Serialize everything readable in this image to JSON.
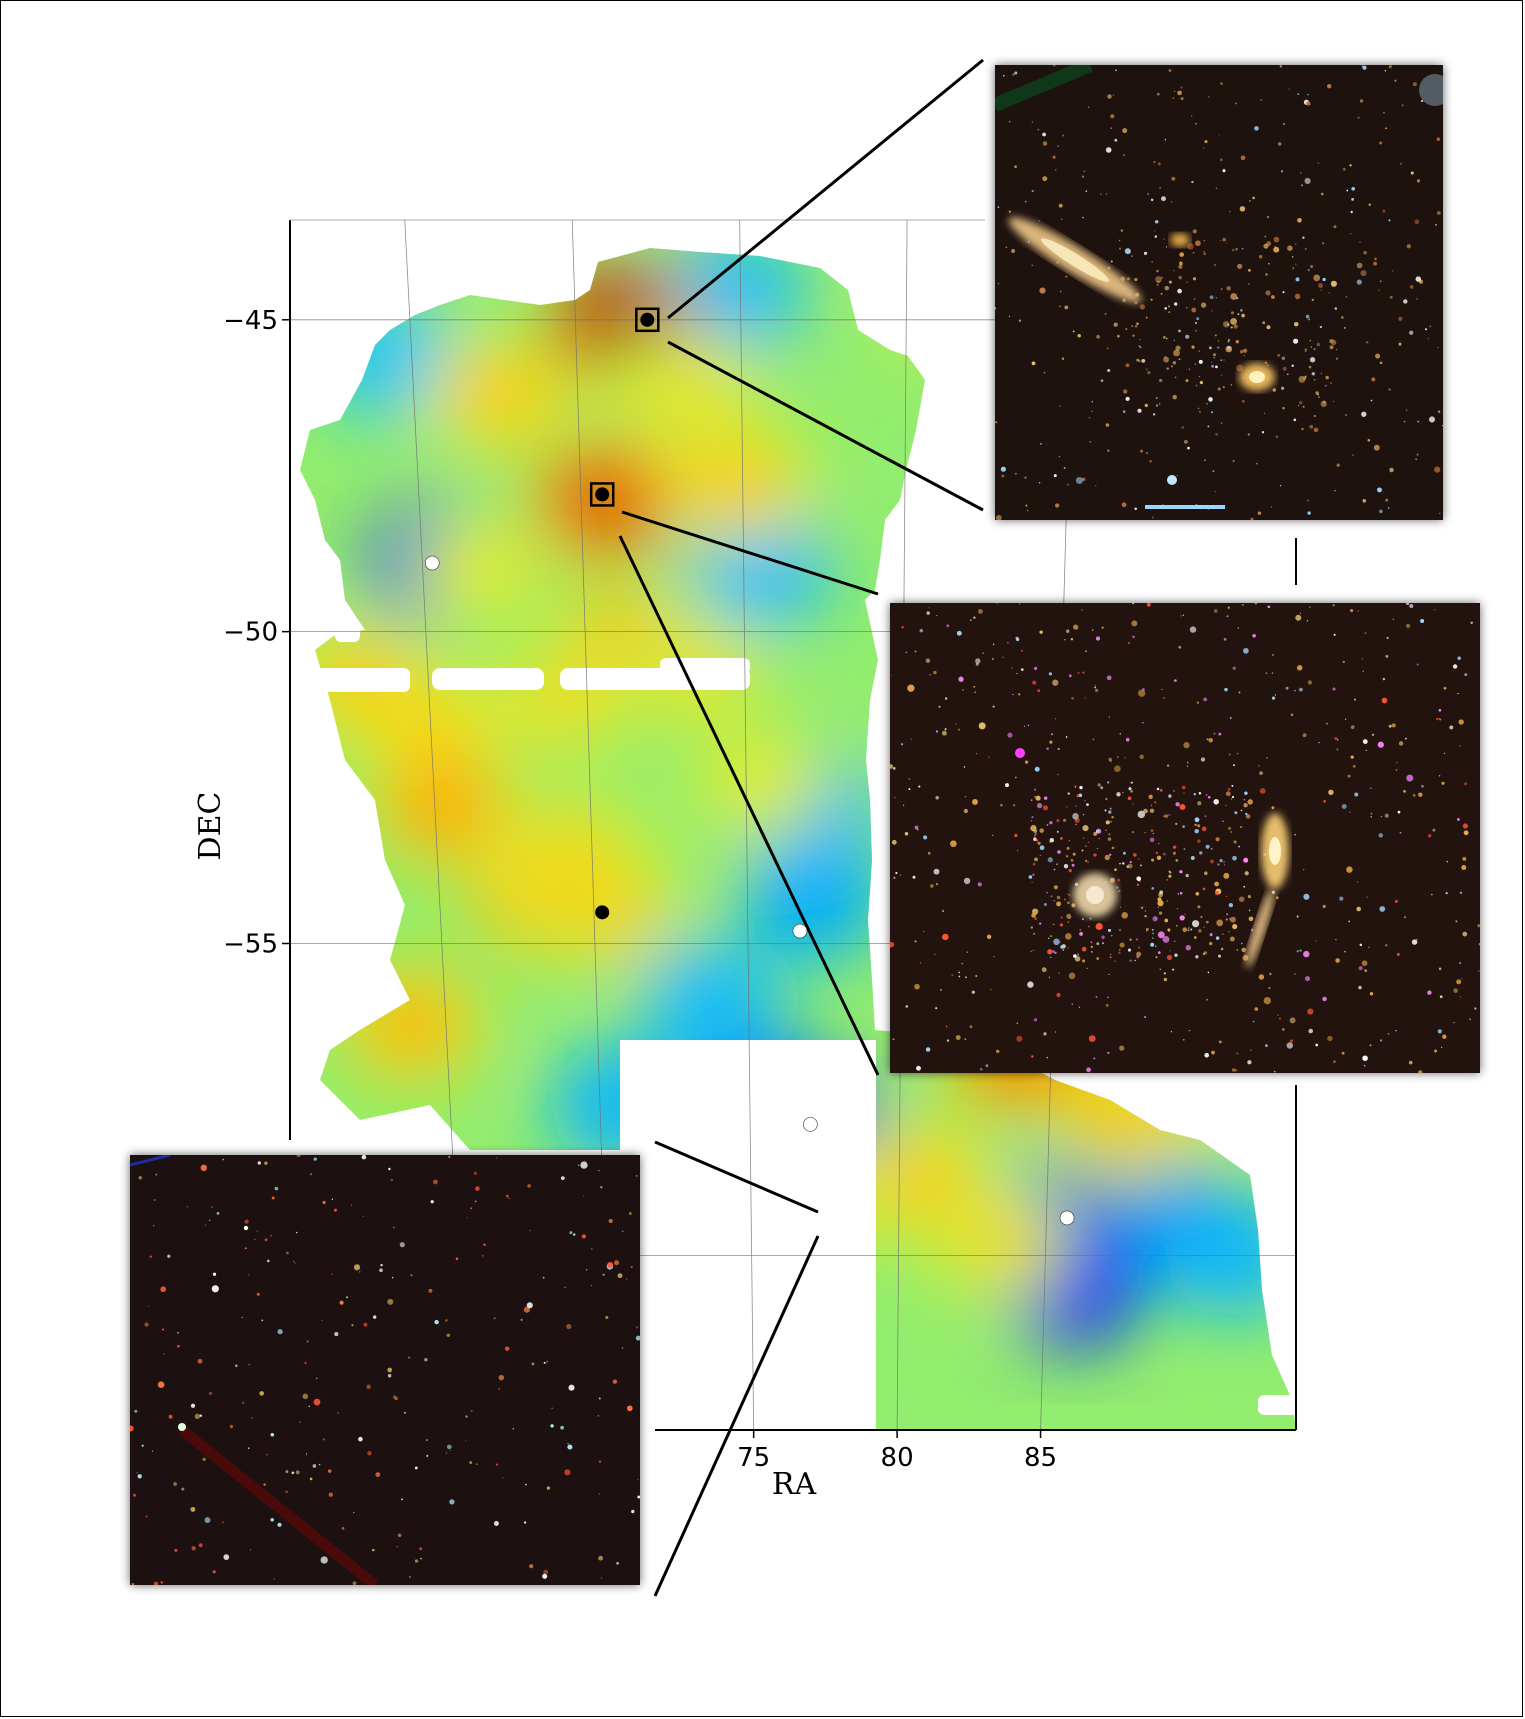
{
  "chart_data": {
    "type": "heatmap",
    "xlabel": "RA",
    "ylabel": "DEC",
    "x_ticks": [
      "75",
      "80",
      "85"
    ],
    "y_ticks": [
      "−45",
      "−50",
      "−55"
    ],
    "x_tick_values": [
      75,
      80,
      85
    ],
    "y_tick_values": [
      -45,
      -50,
      -55
    ],
    "xlim": [
      61,
      90
    ],
    "ylim": [
      -62.8,
      -43.4
    ],
    "colormap": [
      "#0022ee",
      "#00aaff",
      "#33ddee",
      "#99ee66",
      "#eeee22",
      "#ffaa00",
      "#ee3300",
      "#550000"
    ],
    "field_color": "#ffffff",
    "grid": true,
    "peaks": [
      {
        "ra": 70.6,
        "dec": -45.1,
        "level": 1.0
      },
      {
        "ra": 70.1,
        "dec": -47.9,
        "level": 0.88
      },
      {
        "ra": 70.8,
        "dec": -50.2,
        "level": 0.72
      },
      {
        "ra": 67.0,
        "dec": -46.2,
        "level": 0.68
      },
      {
        "ra": 73.9,
        "dec": -47.6,
        "level": 0.68
      },
      {
        "ra": 71.9,
        "dec": -46.1,
        "level": 0.62
      },
      {
        "ra": 65.0,
        "dec": -51.5,
        "level": 0.66
      },
      {
        "ra": 65.4,
        "dec": -52.8,
        "level": 0.74
      },
      {
        "ra": 68.2,
        "dec": -54.2,
        "level": 0.74
      },
      {
        "ra": 70.0,
        "dec": -54.4,
        "level": 0.7
      },
      {
        "ra": 69.2,
        "dec": -53.6,
        "level": 0.65
      },
      {
        "ra": 68.9,
        "dec": -51.1,
        "level": 0.62
      },
      {
        "ra": 72.7,
        "dec": -50.6,
        "level": 0.6
      },
      {
        "ra": 63.0,
        "dec": -50.8,
        "level": 0.68
      },
      {
        "ra": 64.5,
        "dec": -56.3,
        "level": 0.72
      },
      {
        "ra": 82.0,
        "dec": -56.8,
        "level": 0.8
      },
      {
        "ra": 85.2,
        "dec": -57.7,
        "level": 0.72
      },
      {
        "ra": 87.0,
        "dec": -57.2,
        "level": 0.66
      },
      {
        "ra": 79.2,
        "dec": -58.8,
        "level": 0.68
      },
      {
        "ra": 81.4,
        "dec": -59.8,
        "level": 0.62
      },
      {
        "ra": 76.0,
        "dec": -59.1,
        "level": 0.6
      },
      {
        "ra": 72.6,
        "dec": -46.1,
        "level": 0.6
      },
      {
        "ra": 80.0,
        "dec": -44.8,
        "level": 0.55
      },
      {
        "ra": 74.5,
        "dec": -52.4,
        "level": 0.58
      },
      {
        "ra": 66.5,
        "dec": -49.0,
        "level": 0.58
      }
    ],
    "troughs": [
      {
        "ra": 65.3,
        "dec": -48.9,
        "level": 0.0
      },
      {
        "ra": 75.9,
        "dec": -57.9,
        "level": 0.0
      },
      {
        "ra": 74.5,
        "dec": -57.4,
        "level": 0.1
      },
      {
        "ra": 76.1,
        "dec": -54.3,
        "level": 0.15
      },
      {
        "ra": 76.0,
        "dec": -52.9,
        "level": 0.18
      },
      {
        "ra": 82.8,
        "dec": -59.6,
        "level": 0.05
      },
      {
        "ra": 83.6,
        "dec": -60.5,
        "level": 0.02
      },
      {
        "ra": 86.8,
        "dec": -59.6,
        "level": 0.12
      },
      {
        "ra": 70.5,
        "dec": -57.6,
        "level": 0.18
      },
      {
        "ra": 73.8,
        "dec": -44.6,
        "level": 0.2
      },
      {
        "ra": 74.6,
        "dec": -49.0,
        "level": 0.2
      },
      {
        "ra": 63.8,
        "dec": -45.6,
        "level": 0.22
      },
      {
        "ra": 88.2,
        "dec": -60.0,
        "level": 0.18
      },
      {
        "ra": 73.1,
        "dec": -55.9,
        "level": 0.2
      }
    ],
    "markers": [
      {
        "ra": 71.3,
        "dec": -45.0,
        "kind": "black-dot",
        "boxed": true
      },
      {
        "ra": 70.0,
        "dec": -47.8,
        "kind": "black-dot",
        "boxed": true
      },
      {
        "ra": 70.0,
        "dec": -54.5,
        "kind": "black-dot",
        "boxed": false
      },
      {
        "ra": 65.1,
        "dec": -48.9,
        "kind": "white-dot",
        "boxed": false
      },
      {
        "ra": 75.7,
        "dec": -54.8,
        "kind": "white-dot",
        "boxed": false
      },
      {
        "ra": 76.0,
        "dec": -57.9,
        "kind": "white-dot",
        "boxed": true
      },
      {
        "ra": 83.4,
        "dec": -59.4,
        "kind": "white-dot",
        "boxed": false
      }
    ],
    "insets": [
      {
        "name": "cluster-cutout-top",
        "theme": "rich cluster with bright edge-on spiral",
        "bg": "#1e120f",
        "galaxy_color": "#e0a850"
      },
      {
        "name": "cluster-cutout-middle",
        "theme": "rich cluster with bright ellipticals",
        "bg": "#22130f",
        "galaxy_color": "#e8a84a"
      },
      {
        "name": "void-cutout-bottom",
        "theme": "sparse field with star trail",
        "bg": "#1c1010",
        "galaxy_color": "#c87040"
      }
    ]
  }
}
